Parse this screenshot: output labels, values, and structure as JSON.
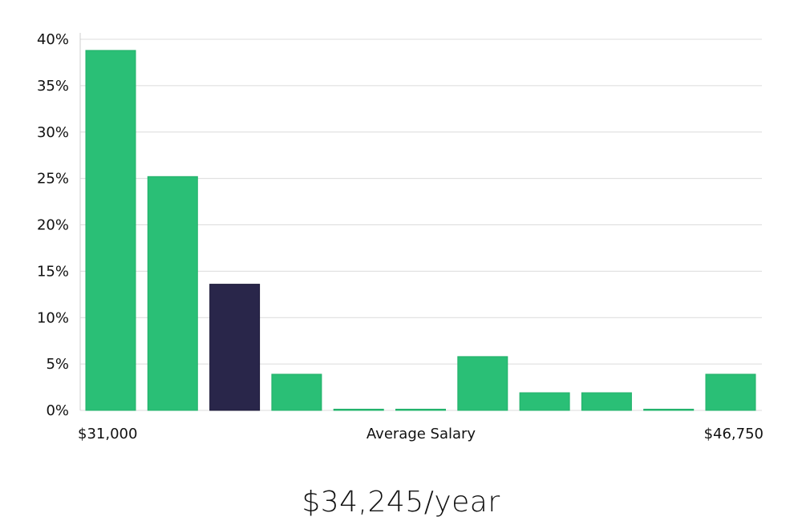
{
  "chart_data": {
    "type": "bar",
    "categories": [
      "1",
      "2",
      "3",
      "4",
      "5",
      "6",
      "7",
      "8",
      "9",
      "10",
      "11"
    ],
    "values": [
      38.8,
      25.2,
      13.6,
      3.9,
      0,
      0,
      5.8,
      1.9,
      1.9,
      0,
      3.9
    ],
    "highlight_index": 2,
    "y_ticks": [
      "0%",
      "5%",
      "10%",
      "15%",
      "20%",
      "25%",
      "30%",
      "35%",
      "40%"
    ],
    "ylim": [
      0,
      40
    ],
    "grid": true,
    "x_min_label": "$31,000",
    "x_max_label": "$46,750",
    "xlabel": "Average Salary",
    "colors": {
      "bar": "#2abf76",
      "highlight": "#29264a",
      "grid": "#dcdcdc"
    }
  },
  "salary_display": "$34,245/year"
}
